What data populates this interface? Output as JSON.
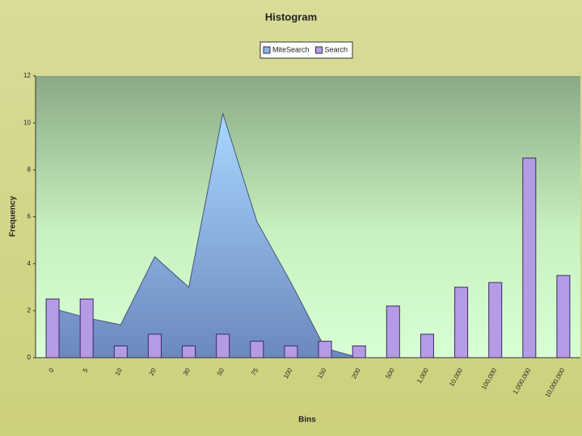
{
  "chart_data": {
    "type": "bar-area",
    "title": "Histogram",
    "x_label": "Bins",
    "y_label": "Frequency",
    "categories": [
      "0",
      "5",
      "10",
      "20",
      "30",
      "50",
      "75",
      "100",
      "150",
      "200",
      "500",
      "1,000",
      "10,000",
      "100,000",
      "1,000,000",
      "10,000,000"
    ],
    "series": [
      {
        "name": "MiteSearch",
        "kind": "area",
        "color": "#8fc4f5",
        "values": [
          2.1,
          1.7,
          1.4,
          4.3,
          3.0,
          10.4,
          5.8,
          3.2,
          0.4,
          0,
          0,
          0,
          0,
          0,
          0,
          0
        ]
      },
      {
        "name": "Search",
        "kind": "bar",
        "color": "#b59be6",
        "values": [
          2.5,
          2.5,
          0.5,
          1.0,
          0.5,
          1.0,
          0.7,
          0.5,
          0.7,
          0.5,
          2.2,
          1.0,
          3.0,
          3.2,
          8.5,
          3.5
        ]
      }
    ],
    "ylim": [
      0,
      12
    ],
    "yticks": [
      0,
      2,
      4,
      6,
      8,
      10,
      12
    ],
    "legend": "top"
  }
}
